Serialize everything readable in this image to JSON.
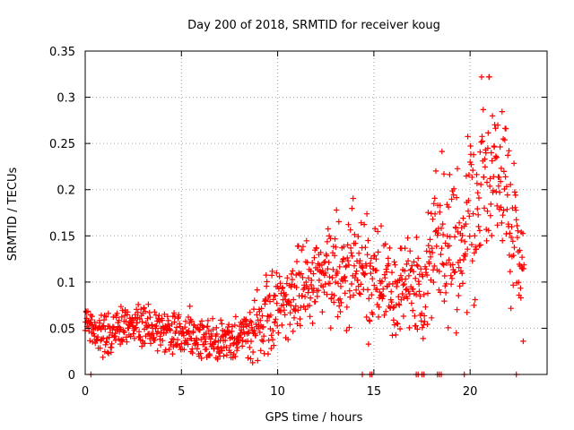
{
  "chart_data": {
    "type": "scatter",
    "title": "Day 200 of 2018, SRMTID for receiver koug",
    "xlabel": "GPS time / hours",
    "ylabel": "SRMTID / TECUs",
    "xlim": [
      0,
      24
    ],
    "ylim": [
      0,
      0.35
    ],
    "xticks": [
      "0",
      "5",
      "10",
      "15",
      "20"
    ],
    "yticks": [
      "0",
      "0.05",
      "0.1",
      "0.15",
      "0.2",
      "0.25",
      "0.3",
      "0.35"
    ],
    "grid": true,
    "marker": "+",
    "series": [
      {
        "name": "SRMTID",
        "color": "#ff0000",
        "trend": [
          [
            0.0,
            0.06
          ],
          [
            0.3,
            0.05
          ],
          [
            1.0,
            0.045
          ],
          [
            2.0,
            0.05
          ],
          [
            3.0,
            0.055
          ],
          [
            4.0,
            0.05
          ],
          [
            5.0,
            0.047
          ],
          [
            6.0,
            0.04
          ],
          [
            7.0,
            0.038
          ],
          [
            8.0,
            0.04
          ],
          [
            9.0,
            0.055
          ],
          [
            9.5,
            0.065
          ],
          [
            10.0,
            0.075
          ],
          [
            11.0,
            0.09
          ],
          [
            12.0,
            0.1
          ],
          [
            13.0,
            0.11
          ],
          [
            14.0,
            0.12
          ],
          [
            14.5,
            0.11
          ],
          [
            15.0,
            0.1
          ],
          [
            16.0,
            0.09
          ],
          [
            17.0,
            0.1
          ],
          [
            17.5,
            0.08
          ],
          [
            18.0,
            0.13
          ],
          [
            18.5,
            0.16
          ],
          [
            19.0,
            0.15
          ],
          [
            19.5,
            0.12
          ],
          [
            20.0,
            0.19
          ],
          [
            20.5,
            0.2
          ],
          [
            21.0,
            0.23
          ],
          [
            21.5,
            0.21
          ],
          [
            22.0,
            0.17
          ],
          [
            22.5,
            0.13
          ],
          [
            22.8,
            0.1
          ]
        ],
        "noise": [
          [
            0.0,
            0.015
          ],
          [
            8.5,
            0.015
          ],
          [
            9.0,
            0.025
          ],
          [
            14.0,
            0.035
          ],
          [
            17.5,
            0.03
          ],
          [
            18.0,
            0.05
          ],
          [
            20.0,
            0.055
          ],
          [
            21.0,
            0.06
          ],
          [
            22.8,
            0.045
          ]
        ],
        "x_range": [
          0.0,
          22.8
        ],
        "x_step": 0.02,
        "zero_points": [
          0.3,
          14.4,
          14.8,
          14.9,
          17.2,
          17.3,
          17.5,
          17.6,
          18.3,
          18.4,
          18.5,
          19.7,
          22.4
        ]
      }
    ]
  }
}
